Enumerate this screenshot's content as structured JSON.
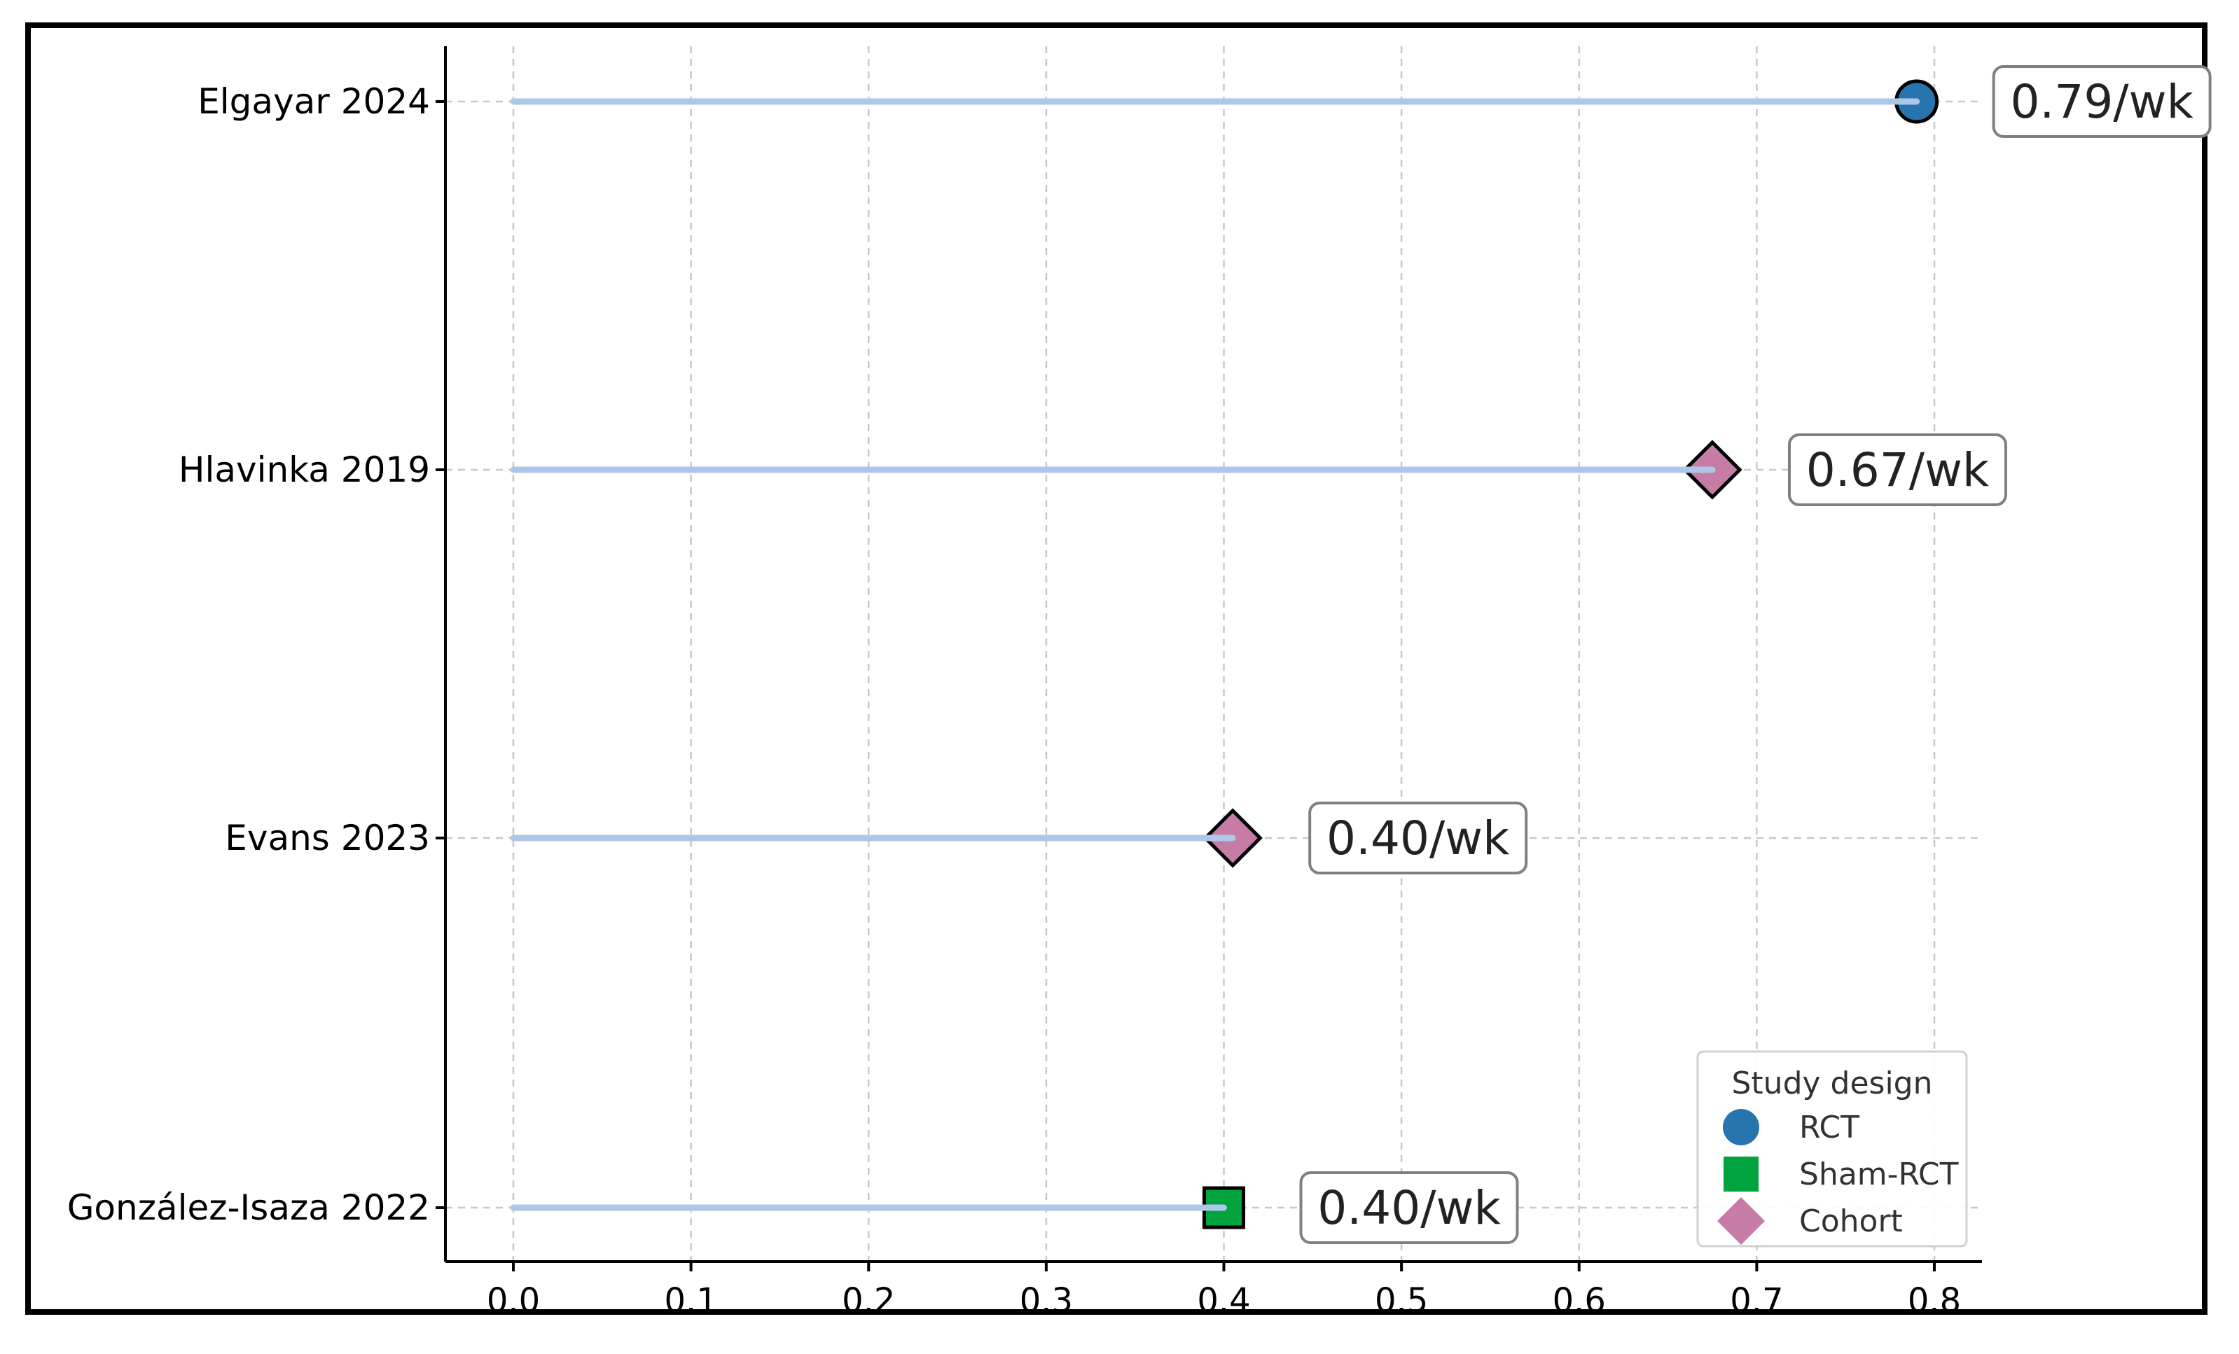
{
  "chart_data": {
    "type": "lollipop",
    "categories": [
      "Elgayar 2024",
      "Hlavinka 2019",
      "Evans 2023",
      "González-Isaza 2022"
    ],
    "values": [
      0.79,
      0.675,
      0.405,
      0.4
    ],
    "designs": [
      "RCT",
      "Cohort",
      "Cohort",
      "Sham-RCT"
    ],
    "annotations": [
      "0.79/wk",
      "0.67/wk",
      "0.40/wk",
      "0.40/wk"
    ],
    "xticks": [
      0.0,
      0.1,
      0.2,
      0.3,
      0.4,
      0.5,
      0.6,
      0.7,
      0.8
    ],
    "xtick_labels": [
      "0.0",
      "0.1",
      "0.2",
      "0.3",
      "0.4",
      "0.5",
      "0.6",
      "0.7",
      "0.8"
    ],
    "xlim": [
      -0.04,
      0.827
    ],
    "title": "",
    "xlabel": "",
    "ylabel": "",
    "grid": true,
    "legend": {
      "title": "Study design",
      "placement": "lower-right",
      "entries": [
        {
          "label": "RCT",
          "marker": "circle",
          "color": "#2774ae"
        },
        {
          "label": "Sham-RCT",
          "marker": "square",
          "color": "#00a33e"
        },
        {
          "label": "Cohort",
          "marker": "diamond",
          "color": "#c77ca8"
        }
      ]
    },
    "stem_color": "#aec7e8",
    "grid_color": "#c8c8c8"
  }
}
